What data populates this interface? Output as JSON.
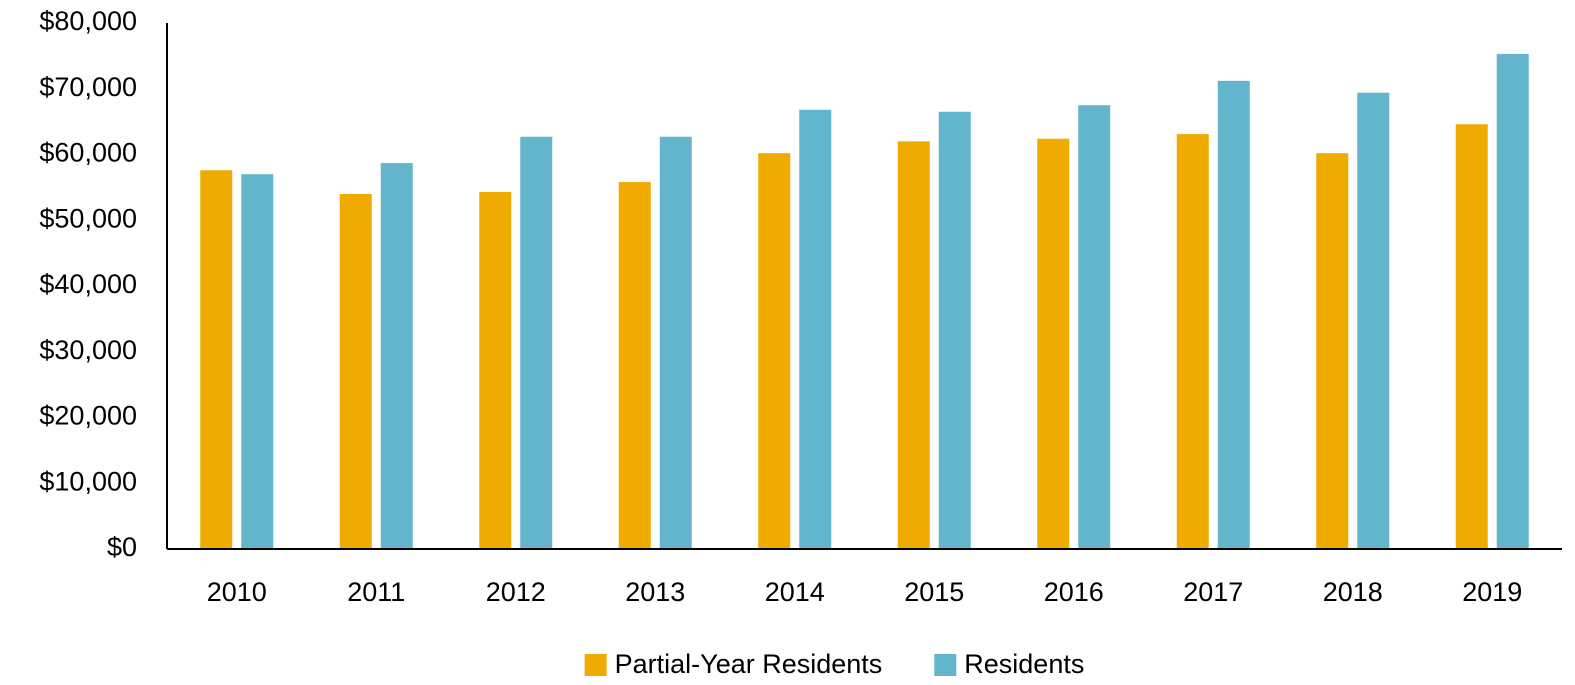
{
  "chart_data": {
    "type": "bar",
    "categories": [
      "2010",
      "2011",
      "2012",
      "2013",
      "2014",
      "2015",
      "2016",
      "2017",
      "2018",
      "2019"
    ],
    "series": [
      {
        "name": "Partial-Year Residents",
        "color": "#f0ab00",
        "values": [
          57600,
          54000,
          54300,
          55800,
          60200,
          62000,
          62400,
          63100,
          60200,
          64600
        ]
      },
      {
        "name": "Residents",
        "color": "#62b5cc",
        "values": [
          57000,
          58700,
          62700,
          62700,
          66800,
          66500,
          67500,
          71200,
          69400,
          75300
        ]
      }
    ],
    "ylim": [
      0,
      80000
    ],
    "yticks": [
      {
        "value": 0,
        "label": "$0"
      },
      {
        "value": 10000,
        "label": "$10,000"
      },
      {
        "value": 20000,
        "label": "$20,000"
      },
      {
        "value": 30000,
        "label": "$30,000"
      },
      {
        "value": 40000,
        "label": "$40,000"
      },
      {
        "value": 50000,
        "label": "$50,000"
      },
      {
        "value": 60000,
        "label": "$60,000"
      },
      {
        "value": 70000,
        "label": "$70,000"
      },
      {
        "value": 80000,
        "label": "$80,000"
      }
    ],
    "grid": false,
    "legend": "bottom"
  }
}
